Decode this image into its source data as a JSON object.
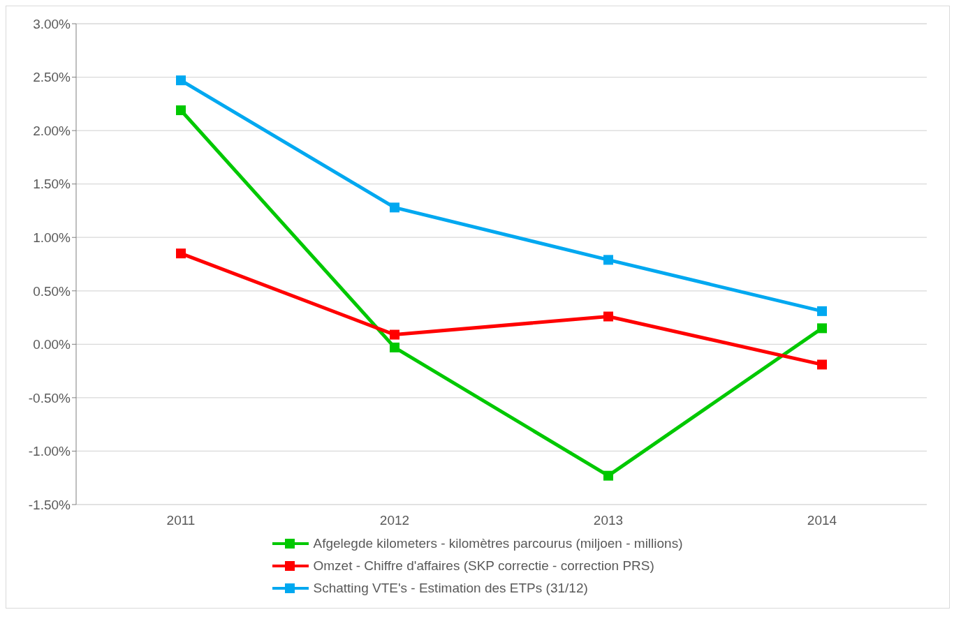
{
  "chart_data": {
    "type": "line",
    "categories": [
      "2011",
      "2012",
      "2013",
      "2014"
    ],
    "series": [
      {
        "name": "Afgelegde kilometers - kilomètres parcourus (miljoen - millions)",
        "color": "#00c800",
        "values": [
          2.19,
          -0.03,
          -1.23,
          0.15
        ]
      },
      {
        "name": "Omzet - Chiffre d'affaires (SKP correctie - correction PRS)",
        "color": "#ff0000",
        "values": [
          0.85,
          0.09,
          0.26,
          -0.19
        ]
      },
      {
        "name": "Schatting VTE's - Estimation des ETPs (31/12)",
        "color": "#00a8f0",
        "values": [
          2.47,
          1.28,
          0.79,
          0.31
        ]
      }
    ],
    "ylim": [
      -1.5,
      3
    ],
    "yticks": [
      {
        "value": -1.5,
        "label": "-1.50%"
      },
      {
        "value": -1,
        "label": "-1.00%"
      },
      {
        "value": -0.5,
        "label": "-0.50%"
      },
      {
        "value": 0,
        "label": "0.00%"
      },
      {
        "value": 0.5,
        "label": "0.50%"
      },
      {
        "value": 1,
        "label": "1.00%"
      },
      {
        "value": 1.5,
        "label": "1.50%"
      },
      {
        "value": 2,
        "label": "2.00%"
      },
      {
        "value": 2.5,
        "label": "2.50%"
      },
      {
        "value": 3,
        "label": "3.00%"
      }
    ],
    "grid": "y",
    "legend": "bottom",
    "marker": "square",
    "line_style": "solid"
  }
}
